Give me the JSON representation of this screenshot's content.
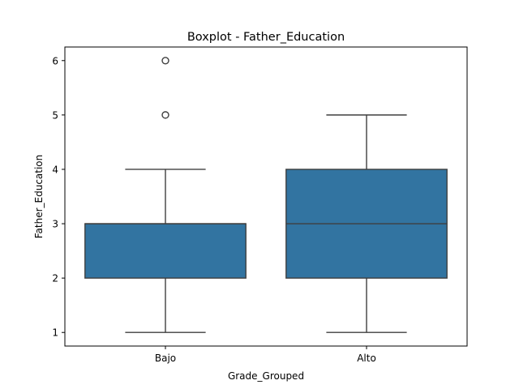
{
  "chart_data": {
    "type": "boxplot",
    "title": "Boxplot - Father_Education",
    "xlabel": "Grade_Grouped",
    "ylabel": "Father_Education",
    "categories": [
      "Bajo",
      "Alto"
    ],
    "boxes": [
      {
        "category": "Bajo",
        "whisker_low": 1,
        "q1": 2,
        "median": 3,
        "q3": 3,
        "whisker_high": 4,
        "outliers": [
          5,
          6
        ]
      },
      {
        "category": "Alto",
        "whisker_low": 1,
        "q1": 2,
        "median": 3,
        "q3": 4,
        "whisker_high": 5,
        "outliers": []
      }
    ],
    "ylim": [
      0.75,
      6.25
    ],
    "yticks": [
      1,
      2,
      3,
      4,
      5,
      6
    ],
    "grid": false,
    "box_color": "#3274a1",
    "line_color": "#3f3f3f"
  }
}
